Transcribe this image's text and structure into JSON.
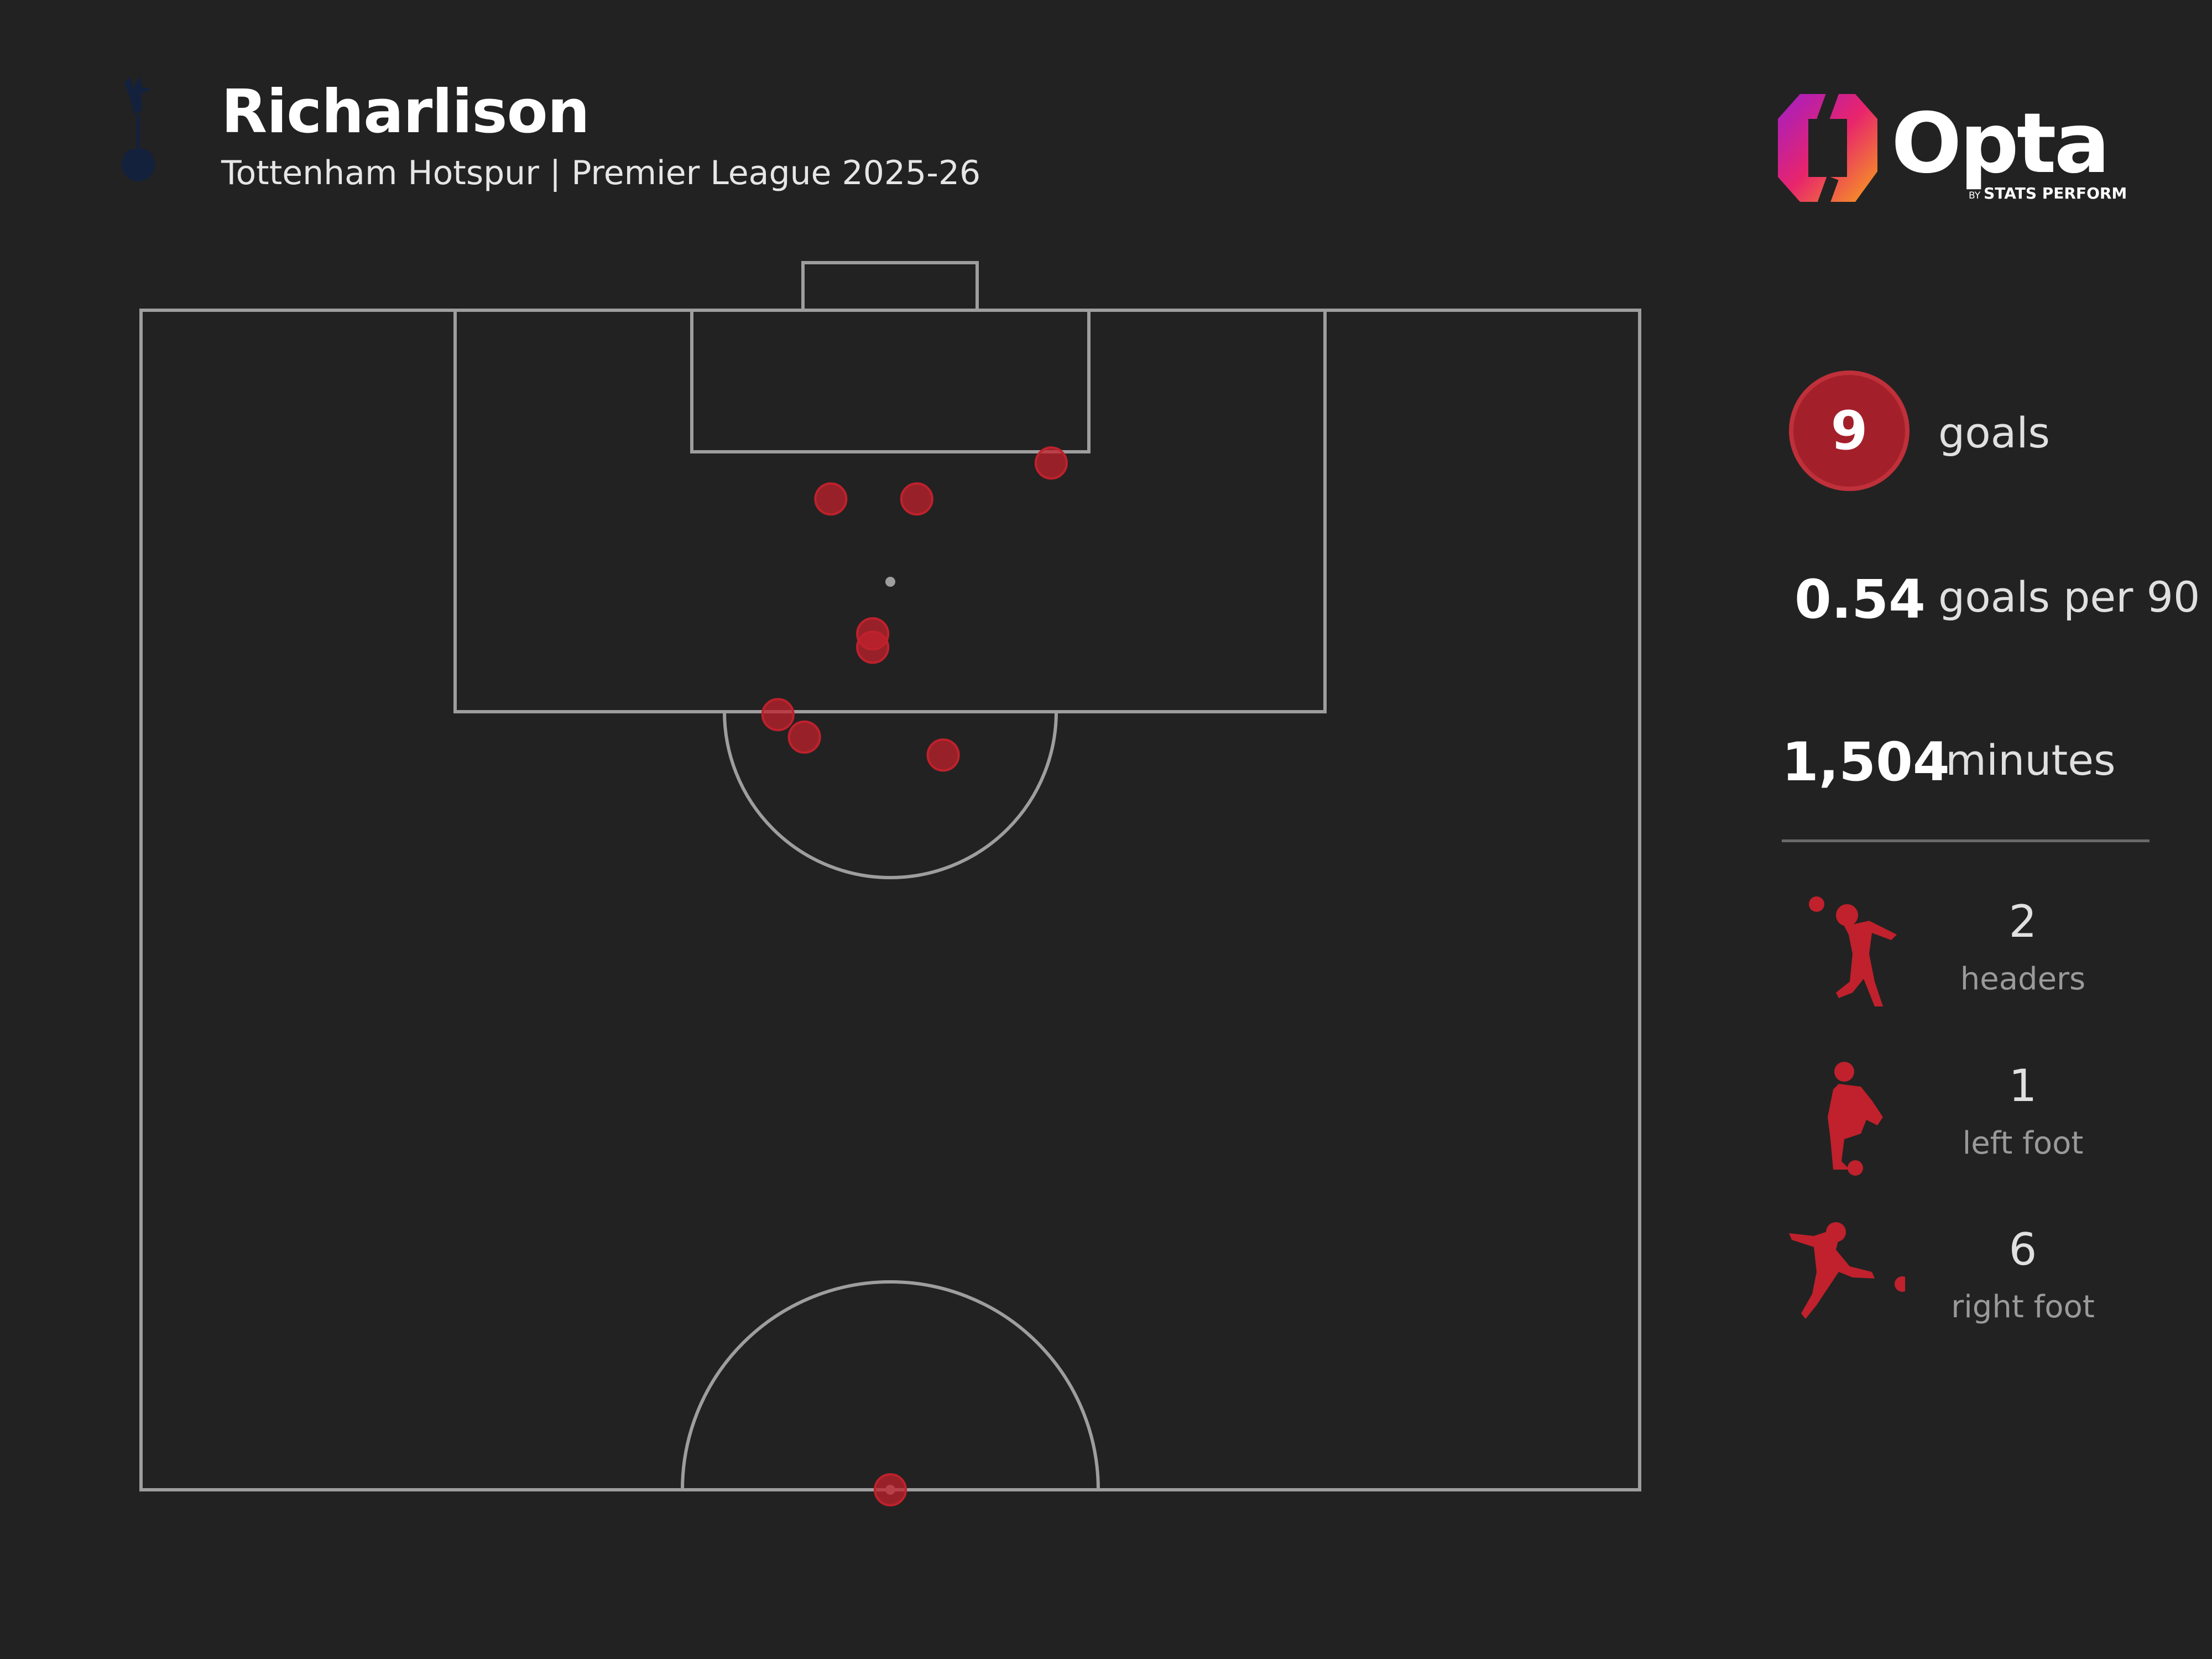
{
  "header": {
    "title": "Richarlison",
    "subtitle": "Tottenham Hotspur | Premier League 2025-26"
  },
  "brand": {
    "name": "Opta",
    "by": "BY",
    "company": "STATS PERFORM"
  },
  "colors": {
    "background": "#222222",
    "pitch_lines": "#9e9e9e",
    "goal_marker": "#c0212c",
    "accent": "#a3202a"
  },
  "stats": {
    "goals": {
      "value": "9",
      "label": "goals"
    },
    "goals_per_90": {
      "value": "0.54",
      "label": "goals per 90"
    },
    "minutes": {
      "value": "1,504",
      "label": "minutes"
    }
  },
  "goal_types": [
    {
      "count": "2",
      "label": "headers",
      "icon": "header-player-icon"
    },
    {
      "count": "1",
      "label": "left foot",
      "icon": "left-foot-player-icon"
    },
    {
      "count": "6",
      "label": "right foot",
      "icon": "right-foot-player-icon"
    }
  ],
  "chart_data": {
    "type": "scatter",
    "x": [
      -2.7,
      1.2,
      7.3,
      -0.8,
      -0.8,
      -5.1,
      -3.9,
      2.4,
      0.0
    ],
    "y": [
      8.4,
      8.4,
      6.8,
      14.4,
      15.0,
      18.0,
      19.0,
      19.8,
      52.5
    ],
    "series": [
      {
        "values": [
          8.4,
          8.4,
          6.8,
          14.4,
          15.0,
          18.0,
          19.0,
          19.8,
          52.5
        ]
      }
    ],
    "xlim": [
      -34,
      34
    ],
    "ylim": [
      0,
      52.5
    ],
    "grid": false
  }
}
